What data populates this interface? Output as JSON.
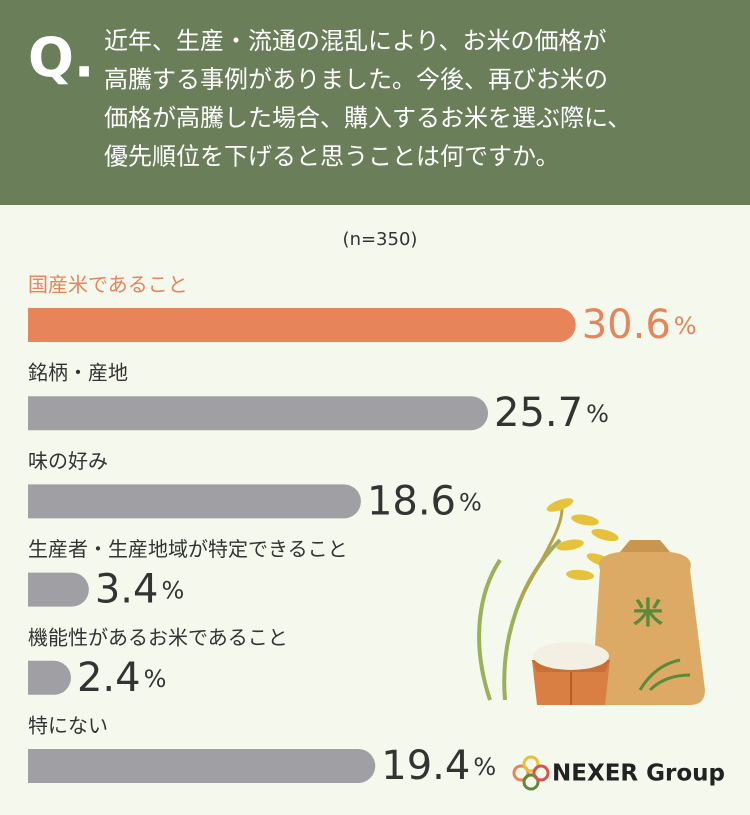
{
  "chart_data": {
    "type": "bar",
    "q_mark": "Q.",
    "title": [
      "近年、生産・流通の混乱により、お米の価格が",
      "高騰する事例がありました。今後、再びお米の",
      "価格が高騰した場合、購入するお米を選ぶ際に、",
      "優先順位を下げると思うことは何ですか。"
    ],
    "subtitle": "(n=350)",
    "categories": [
      "国産米であること",
      "銘柄・産地",
      "味の好み",
      "生産者・生産地域が特定できること",
      "機能性があるお米であること",
      "特にない"
    ],
    "values": [
      30.6,
      25.7,
      18.6,
      3.4,
      2.4,
      19.4
    ],
    "value_labels": [
      "30.6%",
      "25.7%",
      "18.6%",
      "3.4%",
      "2.4%",
      "19.4%"
    ],
    "color": "#a0a0a4",
    "highlight": 0,
    "highlight_color": "#e8845a"
  },
  "illustration": {
    "bag_label": "米"
  },
  "logo": "NEXER Group"
}
